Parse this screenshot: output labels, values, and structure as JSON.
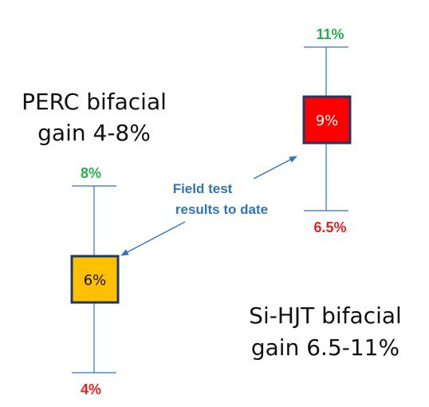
{
  "chart_data": {
    "type": "box",
    "series": [
      {
        "name": "PERC bifacial",
        "caption_line1": "PERC bifacial",
        "caption_line2": "gain 4-8%",
        "low": 4,
        "mid": 6,
        "high": 8,
        "low_label": "4%",
        "mid_label": "6%",
        "high_label": "8%",
        "box_color": "#ffc000"
      },
      {
        "name": "Si-HJT bifacial",
        "caption_line1": "Si-HJT bifacial",
        "caption_line2": "gain 6.5-11%",
        "low": 6.5,
        "mid": 9,
        "high": 11,
        "low_label": "6.5%",
        "mid_label": "9%",
        "high_label": "11%",
        "box_color": "#ff0000"
      }
    ],
    "annotation": {
      "line1": "Field test",
      "line2": "results to date"
    }
  },
  "colors": {
    "high": "#22b04b",
    "low": "#e8201f",
    "line": "#2e75b6",
    "annotation": "#2e75b6",
    "box_border": "#1f3864"
  }
}
